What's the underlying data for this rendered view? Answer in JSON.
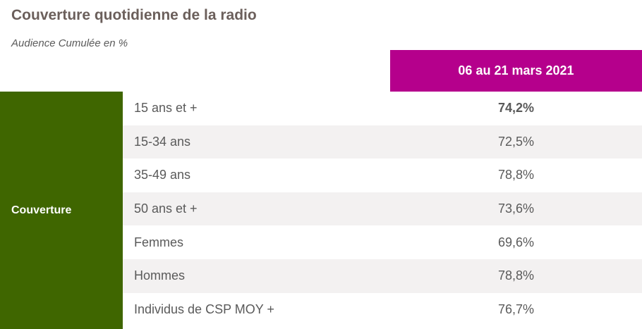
{
  "title": "Couverture quotidienne de la radio",
  "subtitle": "Audience Cumulée en %",
  "colors": {
    "period_header_bg": "#b5008c",
    "group_bg": "#3f6600",
    "alt_row_bg": "#f3f1f1",
    "text": "#5a5a5a",
    "title_text": "#6b5f5b"
  },
  "chart_data": {
    "type": "table",
    "column_header": "06 au 21 mars 2021",
    "row_group": "Couverture",
    "rows": [
      {
        "label": "15 ans et +",
        "value": "74,2%",
        "bold": true
      },
      {
        "label": "15-34 ans",
        "value": "72,5%",
        "bold": false
      },
      {
        "label": "35-49 ans",
        "value": "78,8%",
        "bold": false
      },
      {
        "label": "50 ans et +",
        "value": "73,6%",
        "bold": false
      },
      {
        "label": "Femmes",
        "value": "69,6%",
        "bold": false
      },
      {
        "label": "Hommes",
        "value": "78,8%",
        "bold": false
      },
      {
        "label": "Individus de CSP MOY +",
        "value": "76,7%",
        "bold": false
      }
    ]
  }
}
